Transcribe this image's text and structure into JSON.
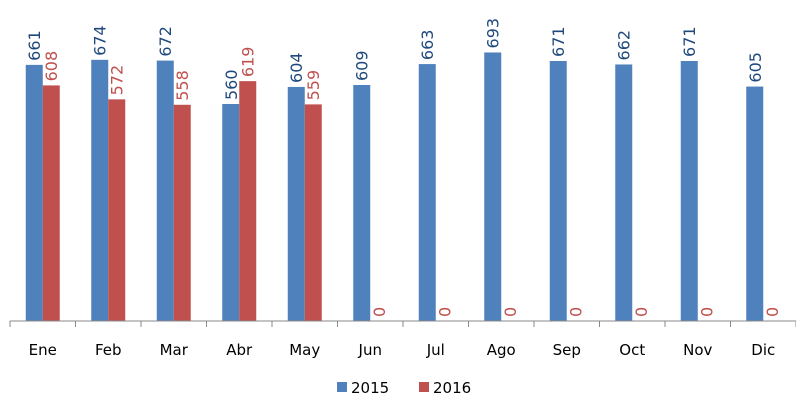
{
  "chart_data": {
    "type": "bar",
    "categories": [
      "Ene",
      "Feb",
      "Mar",
      "Abr",
      "May",
      "Jun",
      "Jul",
      "Ago",
      "Sep",
      "Oct",
      "Nov",
      "Dic"
    ],
    "series": [
      {
        "name": "2015",
        "color": "#4f81bd",
        "label_color": "#1f497d",
        "values": [
          661,
          674,
          672,
          560,
          604,
          609,
          663,
          693,
          671,
          662,
          671,
          605
        ]
      },
      {
        "name": "2016",
        "color": "#c0504d",
        "label_color": "#c0504d",
        "values": [
          608,
          572,
          558,
          619,
          559,
          0,
          0,
          0,
          0,
          0,
          0,
          0
        ]
      }
    ],
    "ylim": [
      0,
      800
    ],
    "legend": "bottom"
  }
}
